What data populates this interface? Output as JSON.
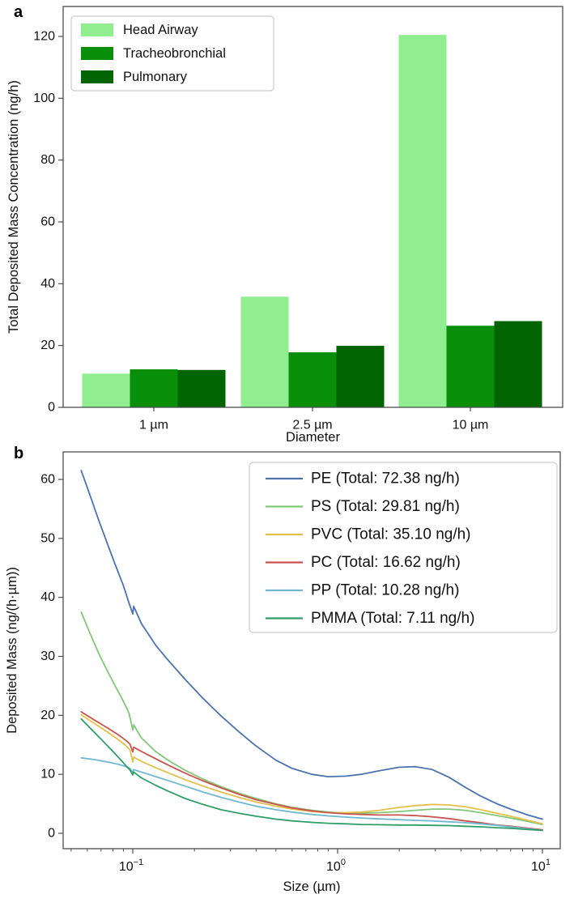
{
  "figure": {
    "panel_a_label": "a",
    "panel_b_label": "b",
    "background": "#ffffff",
    "spine_color": "#4d4d4d"
  },
  "chart_data": [
    {
      "type": "bar",
      "panel": "a",
      "title": "",
      "xlabel": "Diameter",
      "ylabel": "Total Deposited Mass Concentration (ng/h)",
      "categories": [
        "1 µm",
        "2.5 µm",
        "10 µm"
      ],
      "yticks": [
        0,
        20,
        40,
        60,
        80,
        100,
        120
      ],
      "ylim": [
        0,
        129
      ],
      "grid": false,
      "legend_position": "upper-left",
      "series": [
        {
          "id": "head-airway",
          "name": "Head Airway",
          "color": "#90EE90",
          "values": [
            10.9,
            35.8,
            120.5
          ]
        },
        {
          "id": "tracheobronchial",
          "name": "Tracheobronchial",
          "color": "#0A8F0A",
          "values": [
            12.3,
            17.8,
            26.4
          ]
        },
        {
          "id": "pulmonary",
          "name": "Pulmonary",
          "color": "#006400",
          "values": [
            12.1,
            19.9,
            27.9
          ]
        }
      ]
    },
    {
      "type": "line",
      "panel": "b",
      "title": "",
      "xlabel": "Size (µm)",
      "ylabel": "Deposited Mass (ng/(h·µm))",
      "xscale": "log",
      "xlim": [
        0.0457,
        12.2
      ],
      "ylim": [
        -2.6,
        64.5
      ],
      "yticks": [
        0,
        10,
        20,
        30,
        40,
        50,
        60
      ],
      "xticks": [
        {
          "value": 0.1,
          "base": "10",
          "exp": "−1"
        },
        {
          "value": 1,
          "base": "10",
          "exp": "0"
        },
        {
          "value": 10,
          "base": "10",
          "exp": "1"
        }
      ],
      "grid": false,
      "legend_position": "upper-right",
      "series": [
        {
          "id": "PE",
          "name": "PE (Total: 72.38 ng/h)",
          "color": "#4C72B0",
          "points": [
            [
              0.056,
              61.5
            ],
            [
              0.062,
              57.2
            ],
            [
              0.068,
              53.2
            ],
            [
              0.075,
              49.2
            ],
            [
              0.082,
              45.6
            ],
            [
              0.09,
              42
            ],
            [
              0.096,
              39
            ],
            [
              0.1,
              37.2
            ],
            [
              0.101,
              38.5
            ],
            [
              0.11,
              35.6
            ],
            [
              0.13,
              31.8
            ],
            [
              0.15,
              29.2
            ],
            [
              0.18,
              26.1
            ],
            [
              0.22,
              22.9
            ],
            [
              0.27,
              19.9
            ],
            [
              0.33,
              17.2
            ],
            [
              0.4,
              14.8
            ],
            [
              0.5,
              12.4
            ],
            [
              0.6,
              11
            ],
            [
              0.75,
              10
            ],
            [
              0.9,
              9.6
            ],
            [
              1.1,
              9.7
            ],
            [
              1.3,
              10
            ],
            [
              1.6,
              10.6
            ],
            [
              2,
              11.2
            ],
            [
              2.4,
              11.3
            ],
            [
              2.9,
              10.8
            ],
            [
              3.5,
              9.5
            ],
            [
              4.2,
              7.8
            ],
            [
              5,
              6.3
            ],
            [
              6,
              5
            ],
            [
              7,
              4.1
            ],
            [
              8.5,
              3.1
            ],
            [
              10,
              2.4
            ]
          ]
        },
        {
          "id": "PS",
          "name": "PS (Total: 29.81 ng/h)",
          "color": "#82C878",
          "points": [
            [
              0.056,
              37.5
            ],
            [
              0.062,
              33.8
            ],
            [
              0.068,
              30.6
            ],
            [
              0.075,
              27.6
            ],
            [
              0.082,
              25
            ],
            [
              0.09,
              22.4
            ],
            [
              0.096,
              20.3
            ],
            [
              0.1,
              17.5
            ],
            [
              0.101,
              18.4
            ],
            [
              0.11,
              16.2
            ],
            [
              0.13,
              13.8
            ],
            [
              0.15,
              12.3
            ],
            [
              0.18,
              10.7
            ],
            [
              0.22,
              9.2
            ],
            [
              0.27,
              7.9
            ],
            [
              0.33,
              6.8
            ],
            [
              0.4,
              5.9
            ],
            [
              0.5,
              5
            ],
            [
              0.6,
              4.4
            ],
            [
              0.75,
              3.9
            ],
            [
              0.9,
              3.6
            ],
            [
              1.1,
              3.4
            ],
            [
              1.3,
              3.4
            ],
            [
              1.6,
              3.5
            ],
            [
              2,
              3.7
            ],
            [
              2.4,
              3.9
            ],
            [
              2.9,
              4.1
            ],
            [
              3.5,
              4.1
            ],
            [
              4.2,
              3.9
            ],
            [
              5,
              3.5
            ],
            [
              6,
              3
            ],
            [
              7,
              2.6
            ],
            [
              8.5,
              2
            ],
            [
              10,
              1.5
            ]
          ]
        },
        {
          "id": "PVC",
          "name": "PVC (Total: 35.10 ng/h)",
          "color": "#E3C04B",
          "points": [
            [
              0.056,
              20.1
            ],
            [
              0.065,
              18.6
            ],
            [
              0.075,
              17.2
            ],
            [
              0.085,
              15.9
            ],
            [
              0.093,
              14.8
            ],
            [
              0.097,
              14.1
            ],
            [
              0.1,
              12.1
            ],
            [
              0.101,
              12.9
            ],
            [
              0.11,
              12.2
            ],
            [
              0.13,
              11.1
            ],
            [
              0.15,
              10.2
            ],
            [
              0.18,
              9.1
            ],
            [
              0.22,
              8
            ],
            [
              0.27,
              7
            ],
            [
              0.33,
              6.1
            ],
            [
              0.4,
              5.3
            ],
            [
              0.5,
              4.6
            ],
            [
              0.6,
              4.1
            ],
            [
              0.75,
              3.7
            ],
            [
              0.9,
              3.5
            ],
            [
              1.1,
              3.5
            ],
            [
              1.3,
              3.6
            ],
            [
              1.6,
              3.9
            ],
            [
              2,
              4.4
            ],
            [
              2.4,
              4.7
            ],
            [
              2.9,
              4.9
            ],
            [
              3.5,
              4.8
            ],
            [
              4.2,
              4.5
            ],
            [
              5,
              4
            ],
            [
              6,
              3.4
            ],
            [
              7,
              2.9
            ],
            [
              8.5,
              2.2
            ],
            [
              10,
              1.6
            ]
          ]
        },
        {
          "id": "PC",
          "name": "PC (Total: 16.62 ng/h)",
          "color": "#C9534F",
          "points": [
            [
              0.056,
              20.6
            ],
            [
              0.065,
              19.2
            ],
            [
              0.075,
              17.9
            ],
            [
              0.085,
              16.7
            ],
            [
              0.093,
              15.7
            ],
            [
              0.097,
              15.1
            ],
            [
              0.1,
              13.8
            ],
            [
              0.101,
              14.6
            ],
            [
              0.11,
              13.9
            ],
            [
              0.13,
              12.6
            ],
            [
              0.15,
              11.5
            ],
            [
              0.18,
              10.2
            ],
            [
              0.22,
              8.9
            ],
            [
              0.27,
              7.7
            ],
            [
              0.33,
              6.6
            ],
            [
              0.4,
              5.7
            ],
            [
              0.5,
              4.9
            ],
            [
              0.6,
              4.3
            ],
            [
              0.75,
              3.8
            ],
            [
              0.9,
              3.5
            ],
            [
              1.1,
              3.3
            ],
            [
              1.3,
              3.2
            ],
            [
              1.6,
              3.1
            ],
            [
              2,
              3.1
            ],
            [
              2.4,
              3
            ],
            [
              2.9,
              2.8
            ],
            [
              3.5,
              2.5
            ],
            [
              4.2,
              2.1
            ],
            [
              5,
              1.8
            ],
            [
              6,
              1.4
            ],
            [
              7,
              1.2
            ],
            [
              8.5,
              0.85
            ],
            [
              10,
              0.6
            ]
          ]
        },
        {
          "id": "PP",
          "name": "PP (Total: 10.28 ng/h)",
          "color": "#6FB8D2",
          "points": [
            [
              0.056,
              12.8
            ],
            [
              0.065,
              12.5
            ],
            [
              0.075,
              12.1
            ],
            [
              0.085,
              11.7
            ],
            [
              0.093,
              11.3
            ],
            [
              0.097,
              11
            ],
            [
              0.1,
              10.3
            ],
            [
              0.101,
              10.8
            ],
            [
              0.11,
              10.4
            ],
            [
              0.13,
              9.6
            ],
            [
              0.15,
              8.9
            ],
            [
              0.18,
              8
            ],
            [
              0.22,
              7
            ],
            [
              0.27,
              6.1
            ],
            [
              0.33,
              5.3
            ],
            [
              0.4,
              4.6
            ],
            [
              0.5,
              4
            ],
            [
              0.6,
              3.6
            ],
            [
              0.75,
              3.2
            ],
            [
              0.9,
              2.95
            ],
            [
              1.1,
              2.75
            ],
            [
              1.3,
              2.6
            ],
            [
              1.6,
              2.45
            ],
            [
              2,
              2.3
            ],
            [
              2.4,
              2.2
            ],
            [
              2.9,
              2.1
            ],
            [
              3.5,
              1.95
            ],
            [
              4.2,
              1.8
            ],
            [
              5,
              1.6
            ],
            [
              6,
              1.35
            ],
            [
              7,
              1.1
            ],
            [
              8.5,
              0.75
            ],
            [
              10,
              0.5
            ]
          ]
        },
        {
          "id": "PMMA",
          "name": "PMMA (Total: 7.11 ng/h)",
          "color": "#2F9E68",
          "points": [
            [
              0.056,
              19.4
            ],
            [
              0.065,
              17.1
            ],
            [
              0.075,
              14.9
            ],
            [
              0.085,
              12.9
            ],
            [
              0.093,
              11.4
            ],
            [
              0.097,
              10.7
            ],
            [
              0.1,
              9.9
            ],
            [
              0.101,
              10.4
            ],
            [
              0.11,
              9.4
            ],
            [
              0.13,
              8.1
            ],
            [
              0.15,
              7.1
            ],
            [
              0.18,
              5.9
            ],
            [
              0.22,
              4.9
            ],
            [
              0.27,
              4
            ],
            [
              0.33,
              3.4
            ],
            [
              0.4,
              2.9
            ],
            [
              0.5,
              2.4
            ],
            [
              0.6,
              2.1
            ],
            [
              0.75,
              1.85
            ],
            [
              0.9,
              1.7
            ],
            [
              1.1,
              1.6
            ],
            [
              1.3,
              1.5
            ],
            [
              1.6,
              1.45
            ],
            [
              2,
              1.4
            ],
            [
              2.4,
              1.4
            ],
            [
              2.9,
              1.35
            ],
            [
              3.5,
              1.3
            ],
            [
              4.2,
              1.2
            ],
            [
              5,
              1.1
            ],
            [
              6,
              0.95
            ],
            [
              7,
              0.85
            ],
            [
              8.5,
              0.65
            ],
            [
              10,
              0.5
            ]
          ]
        }
      ]
    }
  ]
}
